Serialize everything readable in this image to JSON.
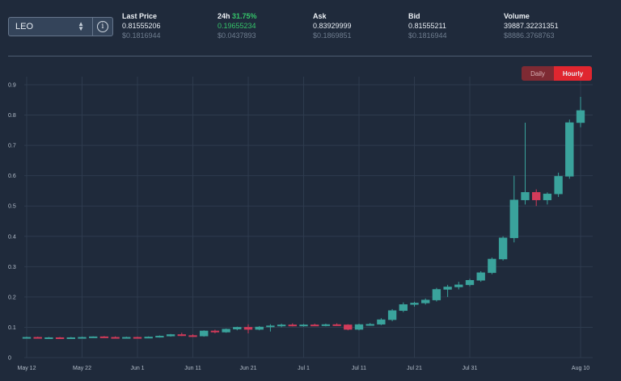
{
  "asset_select": {
    "value": "LEO"
  },
  "stats": {
    "last_price": {
      "label": "Last Price",
      "value": "0.81555206",
      "usd": "$0.1816944"
    },
    "change_24h": {
      "label": "24h",
      "pct": "31.75%",
      "value": "0.19655234",
      "usd": "$0.0437893"
    },
    "ask": {
      "label": "Ask",
      "value": "0.83929999",
      "usd": "$0.1869851"
    },
    "bid": {
      "label": "Bid",
      "value": "0.81555211",
      "usd": "$0.1816944"
    },
    "volume": {
      "label": "Volume",
      "value": "39887.32231351",
      "usd": "$8886.3768763"
    }
  },
  "toggle": {
    "daily_label": "Daily",
    "hourly_label": "Hourly",
    "active": "Hourly"
  },
  "colors": {
    "up": "#3aa39c",
    "down": "#d23b5a",
    "background": "#1f2a3b",
    "hourly_active": "#e0262f"
  },
  "chart_data": {
    "type": "candlestick",
    "x_tick_labels": [
      "May 12",
      "May 22",
      "Jun 1",
      "Jun 11",
      "Jun 21",
      "Jul 1",
      "Jul 11",
      "Jul 21",
      "Jul 31",
      "Aug 10"
    ],
    "y_tick_labels": [
      "0",
      "0.1",
      "0.2",
      "0.3",
      "0.4",
      "0.5",
      "0.6",
      "0.7",
      "0.8",
      "0.9"
    ],
    "ylim": [
      0,
      0.9
    ],
    "grid": true,
    "candles": [
      {
        "date": "May 12",
        "o": 0.066,
        "h": 0.069,
        "l": 0.064,
        "c": 0.067
      },
      {
        "date": "May 14",
        "o": 0.067,
        "h": 0.069,
        "l": 0.064,
        "c": 0.065
      },
      {
        "date": "May 16",
        "o": 0.065,
        "h": 0.068,
        "l": 0.063,
        "c": 0.066
      },
      {
        "date": "May 18",
        "o": 0.066,
        "h": 0.068,
        "l": 0.064,
        "c": 0.065
      },
      {
        "date": "May 20",
        "o": 0.065,
        "h": 0.068,
        "l": 0.063,
        "c": 0.066
      },
      {
        "date": "May 22",
        "o": 0.066,
        "h": 0.069,
        "l": 0.064,
        "c": 0.067
      },
      {
        "date": "May 24",
        "o": 0.067,
        "h": 0.07,
        "l": 0.065,
        "c": 0.069
      },
      {
        "date": "May 26",
        "o": 0.069,
        "h": 0.071,
        "l": 0.066,
        "c": 0.067
      },
      {
        "date": "May 28",
        "o": 0.067,
        "h": 0.07,
        "l": 0.065,
        "c": 0.066
      },
      {
        "date": "May 30",
        "o": 0.066,
        "h": 0.069,
        "l": 0.064,
        "c": 0.067
      },
      {
        "date": "Jun 1",
        "o": 0.067,
        "h": 0.069,
        "l": 0.065,
        "c": 0.066
      },
      {
        "date": "Jun 3",
        "o": 0.066,
        "h": 0.07,
        "l": 0.064,
        "c": 0.068
      },
      {
        "date": "Jun 5",
        "o": 0.068,
        "h": 0.073,
        "l": 0.066,
        "c": 0.071
      },
      {
        "date": "Jun 7",
        "o": 0.071,
        "h": 0.078,
        "l": 0.069,
        "c": 0.076
      },
      {
        "date": "Jun 9",
        "o": 0.076,
        "h": 0.082,
        "l": 0.071,
        "c": 0.073
      },
      {
        "date": "Jun 11",
        "o": 0.073,
        "h": 0.077,
        "l": 0.068,
        "c": 0.071
      },
      {
        "date": "Jun 13",
        "o": 0.071,
        "h": 0.09,
        "l": 0.069,
        "c": 0.088
      },
      {
        "date": "Jun 15",
        "o": 0.088,
        "h": 0.092,
        "l": 0.08,
        "c": 0.084
      },
      {
        "date": "Jun 17",
        "o": 0.084,
        "h": 0.096,
        "l": 0.082,
        "c": 0.094
      },
      {
        "date": "Jun 19",
        "o": 0.094,
        "h": 0.102,
        "l": 0.09,
        "c": 0.1
      },
      {
        "date": "Jun 21",
        "o": 0.1,
        "h": 0.11,
        "l": 0.08,
        "c": 0.093
      },
      {
        "date": "Jun 23",
        "o": 0.093,
        "h": 0.104,
        "l": 0.09,
        "c": 0.101
      },
      {
        "date": "Jun 25",
        "o": 0.101,
        "h": 0.11,
        "l": 0.086,
        "c": 0.105
      },
      {
        "date": "Jun 27",
        "o": 0.105,
        "h": 0.112,
        "l": 0.1,
        "c": 0.108
      },
      {
        "date": "Jun 29",
        "o": 0.108,
        "h": 0.113,
        "l": 0.103,
        "c": 0.106
      },
      {
        "date": "Jul 1",
        "o": 0.106,
        "h": 0.111,
        "l": 0.102,
        "c": 0.108
      },
      {
        "date": "Jul 3",
        "o": 0.108,
        "h": 0.112,
        "l": 0.104,
        "c": 0.107
      },
      {
        "date": "Jul 5",
        "o": 0.107,
        "h": 0.112,
        "l": 0.103,
        "c": 0.109
      },
      {
        "date": "Jul 7",
        "o": 0.109,
        "h": 0.113,
        "l": 0.105,
        "c": 0.108
      },
      {
        "date": "Jul 9",
        "o": 0.108,
        "h": 0.11,
        "l": 0.09,
        "c": 0.093
      },
      {
        "date": "Jul 11",
        "o": 0.093,
        "h": 0.112,
        "l": 0.09,
        "c": 0.109
      },
      {
        "date": "Jul 13",
        "o": 0.109,
        "h": 0.114,
        "l": 0.105,
        "c": 0.11
      },
      {
        "date": "Jul 15",
        "o": 0.11,
        "h": 0.13,
        "l": 0.107,
        "c": 0.125
      },
      {
        "date": "Jul 17",
        "o": 0.125,
        "h": 0.16,
        "l": 0.12,
        "c": 0.155
      },
      {
        "date": "Jul 19",
        "o": 0.155,
        "h": 0.182,
        "l": 0.15,
        "c": 0.175
      },
      {
        "date": "Jul 21",
        "o": 0.175,
        "h": 0.184,
        "l": 0.168,
        "c": 0.18
      },
      {
        "date": "Jul 23",
        "o": 0.18,
        "h": 0.195,
        "l": 0.175,
        "c": 0.19
      },
      {
        "date": "Jul 25",
        "o": 0.19,
        "h": 0.23,
        "l": 0.185,
        "c": 0.225
      },
      {
        "date": "Jul 27",
        "o": 0.225,
        "h": 0.24,
        "l": 0.2,
        "c": 0.233
      },
      {
        "date": "Jul 29",
        "o": 0.233,
        "h": 0.25,
        "l": 0.225,
        "c": 0.24
      },
      {
        "date": "Jul 31",
        "o": 0.24,
        "h": 0.26,
        "l": 0.235,
        "c": 0.255
      },
      {
        "date": "Aug 1",
        "o": 0.255,
        "h": 0.285,
        "l": 0.25,
        "c": 0.28
      },
      {
        "date": "Aug 2",
        "o": 0.28,
        "h": 0.33,
        "l": 0.275,
        "c": 0.325
      },
      {
        "date": "Aug 3",
        "o": 0.325,
        "h": 0.4,
        "l": 0.32,
        "c": 0.395
      },
      {
        "date": "Aug 4",
        "o": 0.395,
        "h": 0.6,
        "l": 0.38,
        "c": 0.52
      },
      {
        "date": "Aug 5",
        "o": 0.52,
        "h": 0.775,
        "l": 0.505,
        "c": 0.545
      },
      {
        "date": "Aug 6",
        "o": 0.545,
        "h": 0.555,
        "l": 0.5,
        "c": 0.52
      },
      {
        "date": "Aug 7",
        "o": 0.52,
        "h": 0.545,
        "l": 0.505,
        "c": 0.54
      },
      {
        "date": "Aug 8",
        "o": 0.54,
        "h": 0.61,
        "l": 0.53,
        "c": 0.598
      },
      {
        "date": "Aug 9",
        "o": 0.598,
        "h": 0.785,
        "l": 0.59,
        "c": 0.775
      },
      {
        "date": "Aug 10",
        "o": 0.775,
        "h": 0.86,
        "l": 0.76,
        "c": 0.815
      }
    ]
  }
}
